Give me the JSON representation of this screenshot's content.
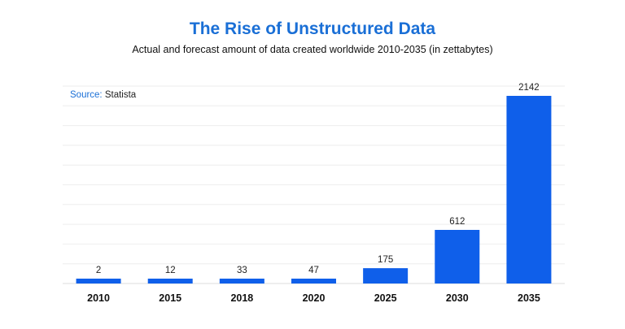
{
  "source": {
    "label": "Source:",
    "value": "Statista"
  },
  "chart_data": {
    "type": "bar",
    "title": "The Rise of Unstructured Data",
    "subtitle": "Actual and forecast amount of data created worldwide 2010-2035 (in zettabytes)",
    "categories": [
      "2010",
      "2015",
      "2018",
      "2020",
      "2025",
      "2030",
      "2035"
    ],
    "values": [
      2,
      12,
      33,
      47,
      175,
      612,
      2142
    ],
    "value_labels": [
      "2",
      "12",
      "33",
      "47",
      "175",
      "612",
      "2142"
    ],
    "xlabel": "",
    "ylabel": "",
    "grid": true,
    "legend": "none",
    "colors": {
      "bar": "#0f5fea",
      "title": "#1a6fd6"
    }
  }
}
